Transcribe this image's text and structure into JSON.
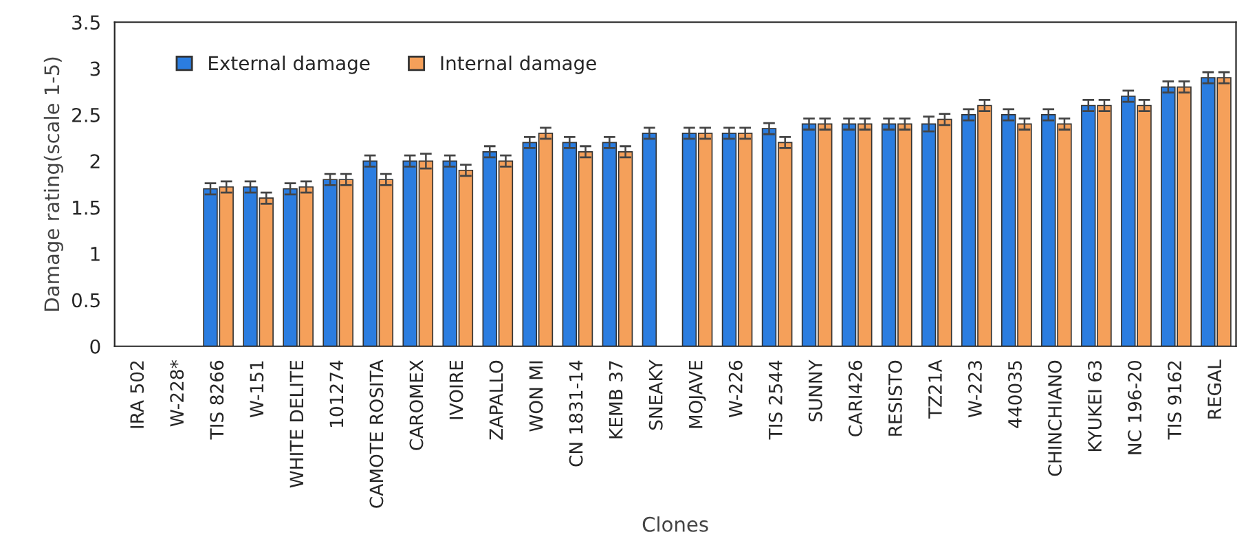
{
  "chart_data": {
    "type": "bar",
    "xlabel": "Clones",
    "ylabel": "Damage rating(scale 1-5)",
    "categories": [
      "IRA 502",
      "W-228*",
      "TIS 8266",
      "W-151",
      "WHITE DELITE",
      "101274",
      "CAMOTE ROSITA",
      "CAROMEX",
      "IVOIRE",
      "ZAPALLO",
      "WON MI",
      "CN 1831-14",
      "KEMB 37",
      "SNEAKY",
      "MOJAVE",
      "W-226",
      "TIS 2544",
      "SUNNY",
      "CARI426",
      "RESISTO",
      "TZ21A",
      "W-223",
      "440035",
      "CHINCHIANO",
      "KYUKEI 63",
      "NC 196-20",
      "TIS 9162",
      "REGAL"
    ],
    "series": [
      {
        "name": "External damage",
        "color": "#2b7de0",
        "values": [
          null,
          null,
          1.7,
          1.72,
          1.7,
          1.8,
          2.0,
          2.0,
          2.0,
          2.1,
          2.2,
          2.2,
          2.2,
          2.3,
          2.3,
          2.3,
          2.35,
          2.4,
          2.4,
          2.4,
          2.4,
          2.5,
          2.5,
          2.5,
          2.6,
          2.7,
          2.8,
          2.9
        ],
        "errors": [
          null,
          null,
          0.06,
          0.06,
          0.06,
          0.06,
          0.06,
          0.06,
          0.06,
          0.06,
          0.06,
          0.06,
          0.06,
          0.06,
          0.06,
          0.06,
          0.06,
          0.06,
          0.06,
          0.06,
          0.08,
          0.06,
          0.06,
          0.06,
          0.06,
          0.06,
          0.06,
          0.06
        ]
      },
      {
        "name": "Internal damage",
        "color": "#f5a05a",
        "values": [
          null,
          null,
          1.72,
          1.6,
          1.72,
          1.8,
          1.8,
          2.0,
          1.9,
          2.0,
          2.3,
          2.1,
          2.1,
          null,
          2.3,
          2.3,
          2.2,
          2.4,
          2.4,
          2.4,
          2.45,
          2.6,
          2.4,
          2.4,
          2.6,
          2.6,
          2.8,
          2.9
        ],
        "errors": [
          null,
          null,
          0.06,
          0.06,
          0.06,
          0.06,
          0.06,
          0.08,
          0.06,
          0.06,
          0.06,
          0.06,
          0.06,
          null,
          0.06,
          0.06,
          0.06,
          0.06,
          0.06,
          0.06,
          0.06,
          0.06,
          0.06,
          0.06,
          0.06,
          0.06,
          0.06,
          0.06
        ]
      }
    ],
    "ylim": [
      0,
      3.5
    ],
    "yticks": [
      0,
      0.5,
      1,
      1.5,
      2,
      2.5,
      3,
      3.5
    ],
    "grid": false,
    "legend": "top left"
  }
}
